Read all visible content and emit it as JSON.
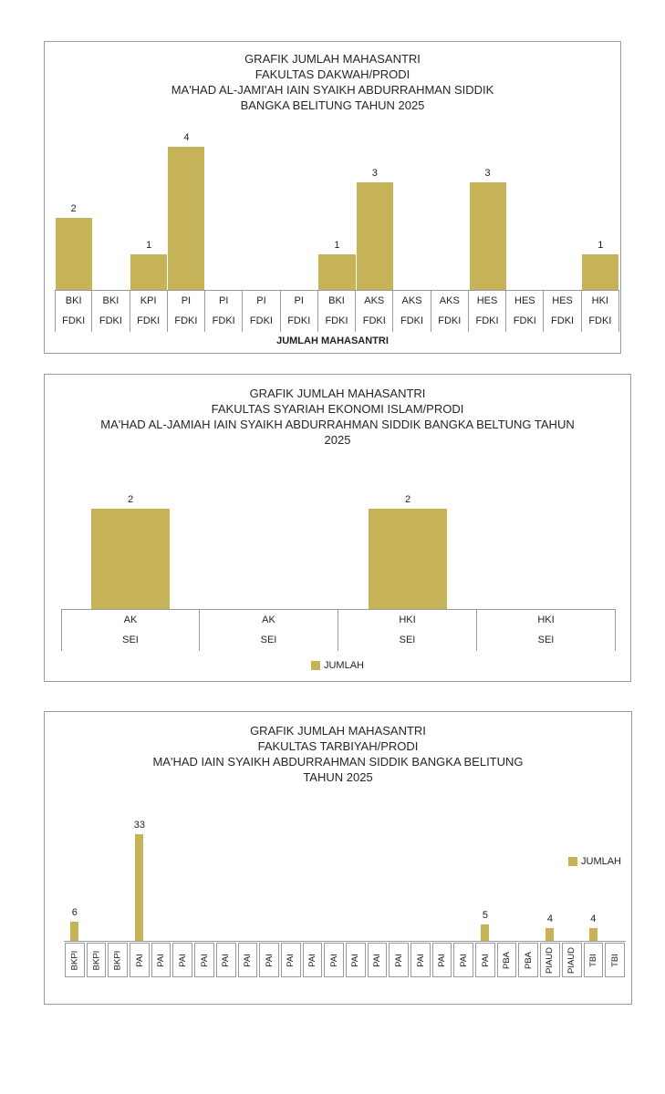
{
  "colors": {
    "bar": "#C6B358",
    "box_border": "#9A9A9A",
    "line": "#9A9A9A",
    "text": "#1F1F1F"
  },
  "chart_data": [
    {
      "type": "bar",
      "title_lines": [
        "GRAFIK JUMLAH MAHASANTRI",
        "FAKULTAS DAKWAH/PRODI",
        "MA'HAD AL-JAMI'AH IAIN SYAIKH ABDURRAHMAN SIDDIK",
        "BANGKA BELITUNG TAHUN 2025"
      ],
      "categories": [
        "BKI",
        "BKI",
        "KPI",
        "PI",
        "PI",
        "PI",
        "PI",
        "BKI",
        "AKS",
        "AKS",
        "AKS",
        "HES",
        "HES",
        "HES",
        "HKI"
      ],
      "subcategories": [
        "FDKI",
        "FDKI",
        "FDKI",
        "FDKI",
        "FDKI",
        "FDKI",
        "FDKI",
        "FDKI",
        "FDKI",
        "FDKI",
        "FDKI",
        "FDKI",
        "FDKI",
        "FDKI",
        "FDKI"
      ],
      "values": [
        2,
        0,
        1,
        4,
        0,
        0,
        0,
        1,
        3,
        0,
        0,
        3,
        0,
        0,
        1
      ],
      "ylim": [
        0,
        4
      ],
      "axis_title": "JUMLAH MAHASANTRI",
      "legend": null,
      "grid": false
    },
    {
      "type": "bar",
      "title_lines": [
        "GRAFIK JUMLAH MAHASANTRI",
        "FAKULTAS SYARIAH EKONOMI ISLAM/PRODI",
        "MA'HAD AL-JAMIAH IAIN SYAIKH ABDURRAHMAN SIDDIK BANGKA BELTUNG TAHUN",
        "2025"
      ],
      "categories": [
        "AK",
        "AK",
        "HKI",
        "HKI"
      ],
      "subcategories": [
        "SEI",
        "SEI",
        "SEI",
        "SEI"
      ],
      "values": [
        2,
        0,
        2,
        0
      ],
      "ylim": [
        0,
        2
      ],
      "axis_title": "",
      "legend": "JUMLAH",
      "legend_position": "bottom-center",
      "grid": false
    },
    {
      "type": "bar",
      "title_lines": [
        "GRAFIK JUMLAH MAHASANTRI",
        "FAKULTAS TARBIYAH/PRODI",
        "MA'HAD IAIN SYAIKH ABDURRAHMAN SIDDIK BANGKA BELITUNG",
        "TAHUN 2025"
      ],
      "categories": [
        "BKPI",
        "BKPI",
        "BKPI",
        "PAI",
        "PAI",
        "PAI",
        "PAI",
        "PAI",
        "PAI",
        "PAI",
        "PAI",
        "PAI",
        "PAI",
        "PAI",
        "PAI",
        "PAI",
        "PAI",
        "PAI",
        "PAI",
        "PAI",
        "PBA",
        "PBA",
        "PIAUD",
        "PIAUD",
        "TBI",
        "TBI"
      ],
      "subcategories": null,
      "values": [
        6,
        0,
        0,
        33,
        0,
        0,
        0,
        0,
        0,
        0,
        0,
        0,
        0,
        0,
        0,
        0,
        0,
        0,
        0,
        5,
        0,
        0,
        4,
        0,
        4,
        0
      ],
      "ylim": [
        0,
        33
      ],
      "axis_title": "",
      "legend": "JUMLAH",
      "legend_position": "right",
      "label_rotation_deg": 90,
      "grid": false
    }
  ]
}
